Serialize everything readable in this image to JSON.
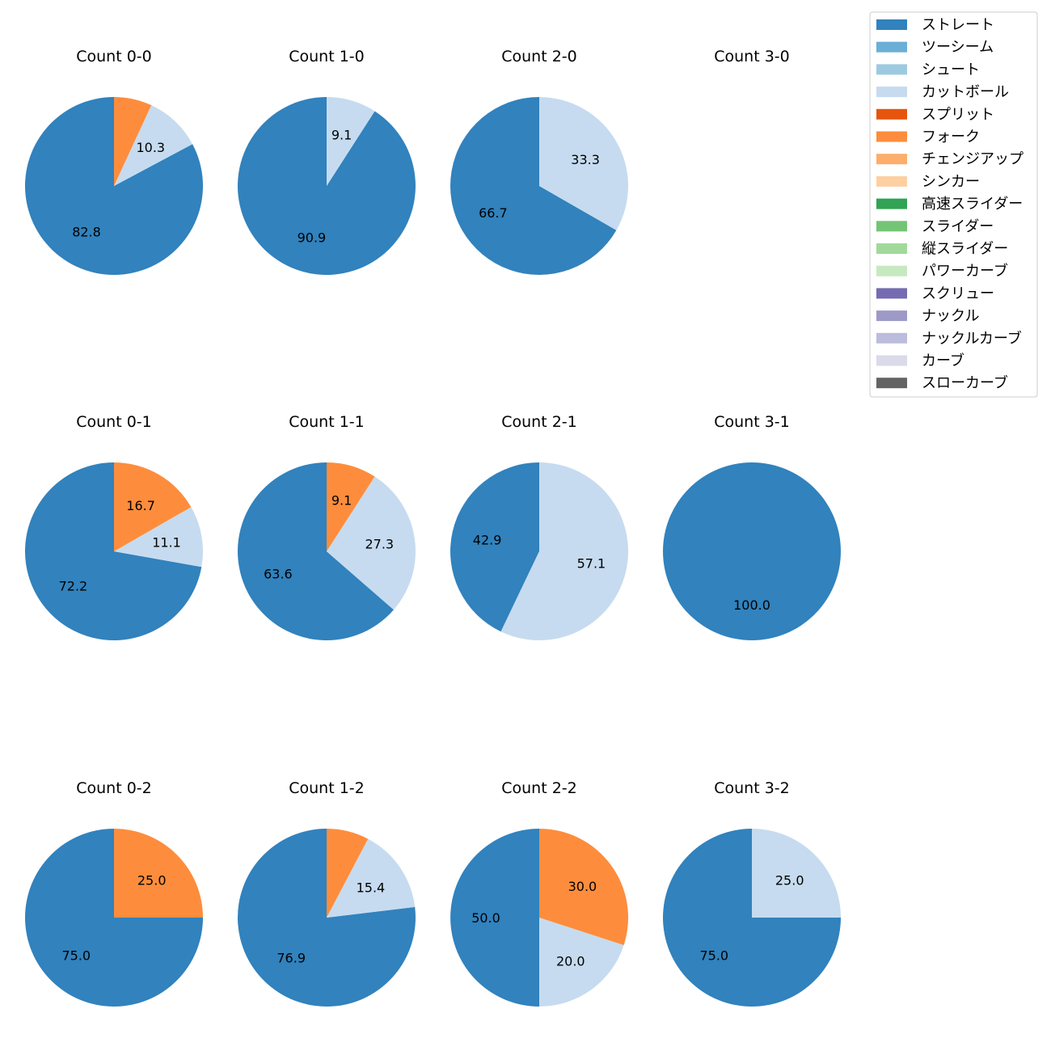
{
  "legend": {
    "items": [
      {
        "label": "ストレート",
        "color": "#3182bd"
      },
      {
        "label": "ツーシーム",
        "color": "#6baed6"
      },
      {
        "label": "シュート",
        "color": "#9ecae1"
      },
      {
        "label": "カットボール",
        "color": "#c6dbef"
      },
      {
        "label": "スプリット",
        "color": "#e6550d"
      },
      {
        "label": "フォーク",
        "color": "#fd8d3c"
      },
      {
        "label": "チェンジアップ",
        "color": "#fdae6b"
      },
      {
        "label": "シンカー",
        "color": "#fdd0a2"
      },
      {
        "label": "高速スライダー",
        "color": "#31a354"
      },
      {
        "label": "スライダー",
        "color": "#74c476"
      },
      {
        "label": "縦スライダー",
        "color": "#a1d99b"
      },
      {
        "label": "パワーカーブ",
        "color": "#c7e9c0"
      },
      {
        "label": "スクリュー",
        "color": "#756bb1"
      },
      {
        "label": "ナックル",
        "color": "#9e9ac8"
      },
      {
        "label": "ナックルカーブ",
        "color": "#bcbddc"
      },
      {
        "label": "カーブ",
        "color": "#dadaeb"
      },
      {
        "label": "スローカーブ",
        "color": "#636363"
      }
    ]
  },
  "chart_data": [
    {
      "type": "pie",
      "title": "Count 0-0",
      "slices": [
        {
          "label": "ストレート",
          "value": 82.8
        },
        {
          "label": "カットボール",
          "value": 10.3
        },
        {
          "label": "フォーク",
          "value": 6.9
        }
      ]
    },
    {
      "type": "pie",
      "title": "Count 1-0",
      "slices": [
        {
          "label": "ストレート",
          "value": 90.9
        },
        {
          "label": "カットボール",
          "value": 9.1
        }
      ]
    },
    {
      "type": "pie",
      "title": "Count 2-0",
      "slices": [
        {
          "label": "ストレート",
          "value": 66.7
        },
        {
          "label": "カットボール",
          "value": 33.3
        }
      ]
    },
    {
      "type": "pie",
      "title": "Count 3-0",
      "slices": []
    },
    {
      "type": "pie",
      "title": "Count 0-1",
      "slices": [
        {
          "label": "ストレート",
          "value": 72.2
        },
        {
          "label": "カットボール",
          "value": 11.1
        },
        {
          "label": "フォーク",
          "value": 16.7
        }
      ]
    },
    {
      "type": "pie",
      "title": "Count 1-1",
      "slices": [
        {
          "label": "ストレート",
          "value": 63.6
        },
        {
          "label": "カットボール",
          "value": 27.3
        },
        {
          "label": "フォーク",
          "value": 9.1
        }
      ]
    },
    {
      "type": "pie",
      "title": "Count 2-1",
      "slices": [
        {
          "label": "ストレート",
          "value": 42.9
        },
        {
          "label": "カットボール",
          "value": 57.1
        }
      ]
    },
    {
      "type": "pie",
      "title": "Count 3-1",
      "slices": [
        {
          "label": "ストレート",
          "value": 100.0
        }
      ]
    },
    {
      "type": "pie",
      "title": "Count 0-2",
      "slices": [
        {
          "label": "ストレート",
          "value": 75.0
        },
        {
          "label": "フォーク",
          "value": 25.0
        }
      ]
    },
    {
      "type": "pie",
      "title": "Count 1-2",
      "slices": [
        {
          "label": "ストレート",
          "value": 76.9
        },
        {
          "label": "カットボール",
          "value": 15.4
        },
        {
          "label": "フォーク",
          "value": 7.7
        }
      ]
    },
    {
      "type": "pie",
      "title": "Count 2-2",
      "slices": [
        {
          "label": "ストレート",
          "value": 50.0
        },
        {
          "label": "カットボール",
          "value": 20.0
        },
        {
          "label": "フォーク",
          "value": 30.0
        }
      ]
    },
    {
      "type": "pie",
      "title": "Count 3-2",
      "slices": [
        {
          "label": "ストレート",
          "value": 75.0
        },
        {
          "label": "カットボール",
          "value": 25.0
        }
      ]
    }
  ]
}
